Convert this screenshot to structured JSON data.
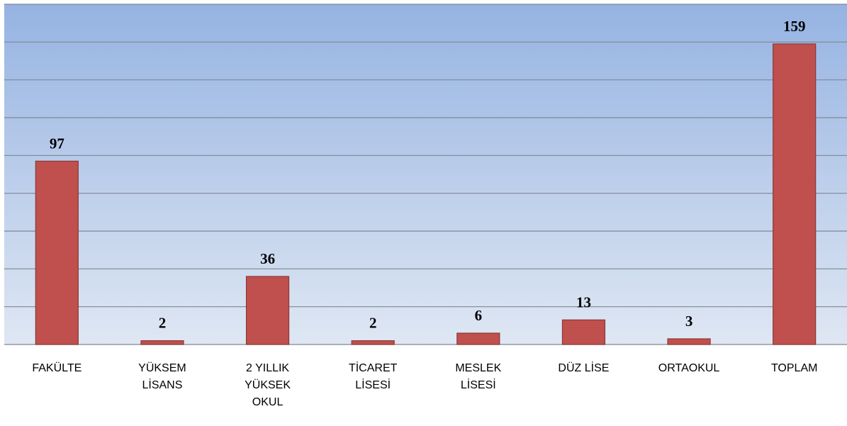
{
  "chart_data": {
    "type": "bar",
    "categories": [
      "FAKÜLTE",
      "YÜKSEM LİSANS",
      "2 YILLIK YÜKSEK OKUL",
      "TİCARET LİSESİ",
      "MESLEK LİSESİ",
      "DÜZ LİSE",
      "ORTAOKUL",
      "TOPLAM"
    ],
    "values": [
      97,
      2,
      36,
      2,
      6,
      13,
      3,
      159
    ],
    "color": "#c0504d",
    "ylim": [
      0,
      180
    ],
    "yticks": [
      0,
      20,
      40,
      60,
      80,
      100,
      120,
      140,
      160,
      180
    ],
    "grid": true
  }
}
